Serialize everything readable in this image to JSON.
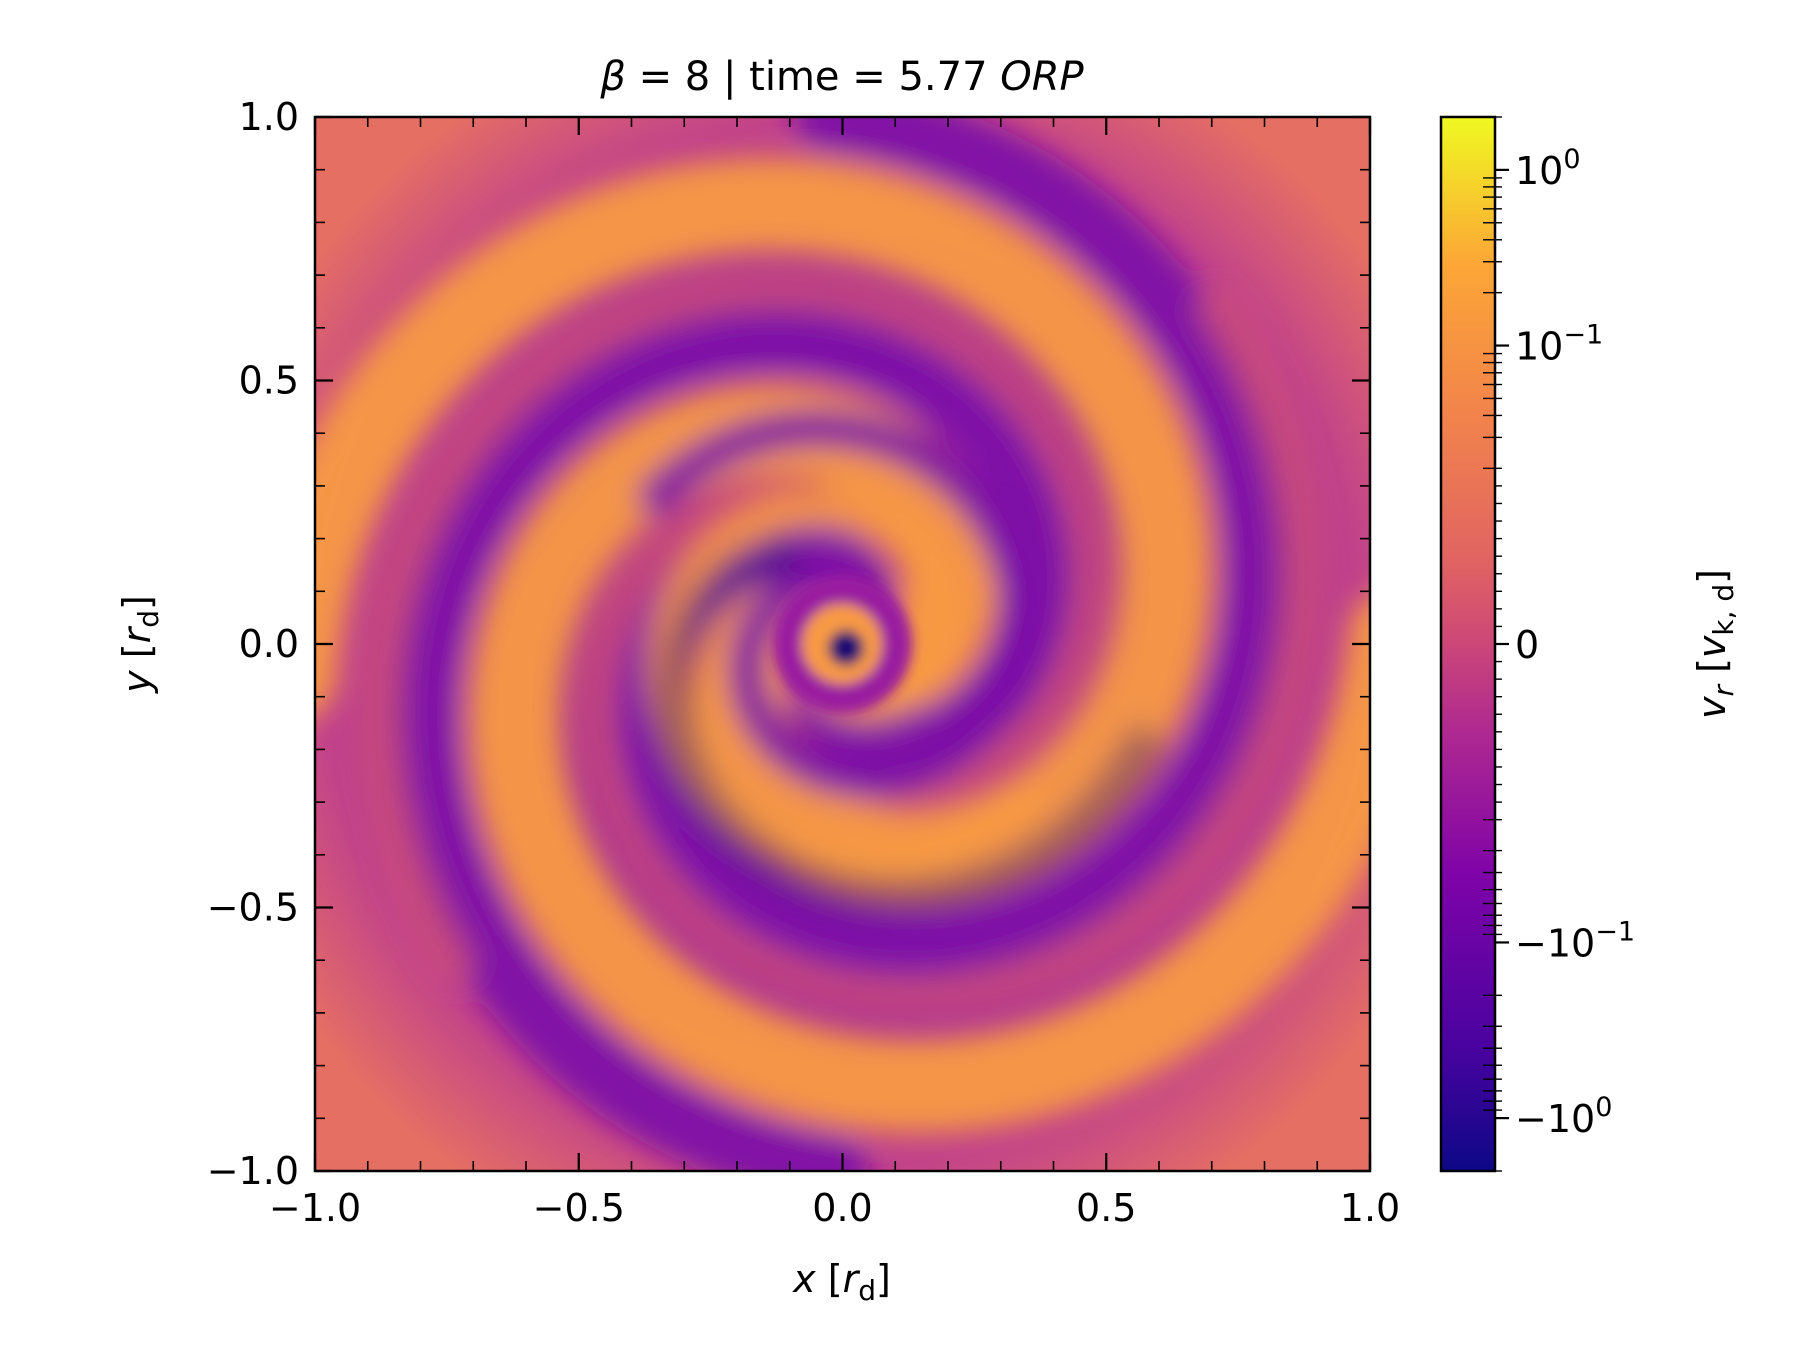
{
  "chart_data": {
    "type": "heatmap",
    "title": {
      "beta_symbol": "β",
      "beta_rest": " = 8 | time = 5.77 ",
      "unit": "ORP"
    },
    "xlabel": {
      "var": "x",
      "open": " [",
      "sym": "r",
      "sub": "d",
      "close": "]"
    },
    "ylabel": {
      "var": "y",
      "open": " [",
      "sym": "r",
      "sub": "d",
      "close": "]"
    },
    "xlim": [
      -1.0,
      1.0
    ],
    "ylim": [
      -1.0,
      1.0
    ],
    "x_ticks": [
      "−1.0",
      "−0.5",
      "0.0",
      "0.5",
      "1.0"
    ],
    "y_ticks": [
      "−1.0",
      "−0.5",
      "0.0",
      "0.5",
      "1.0"
    ],
    "grid": false,
    "colormap": "plasma",
    "colors": {
      "dark_inflow": "#1d0b73",
      "inflow": "#7a11a8",
      "zero": "#d5566e",
      "outflow": "#f89a43",
      "strong_outflow": "#f0f921"
    },
    "colorbar": {
      "label": {
        "var": "v",
        "sub": "r",
        "open": " [",
        "sym": "v",
        "sub2": "k, d",
        "close": "]"
      },
      "scale": "symlog",
      "range": [
        -2.0,
        2.0
      ],
      "linthresh": 0.02,
      "ticks": [
        {
          "value": 1.0,
          "base": "10",
          "exp": "0"
        },
        {
          "value": 0.1,
          "base": "10",
          "exp": "−1"
        },
        {
          "value": 0.0,
          "base": "0",
          "exp": ""
        },
        {
          "value": -0.1,
          "base": "−10",
          "exp": "−1"
        },
        {
          "value": -1.0,
          "base": "−10",
          "exp": "0"
        }
      ]
    }
  }
}
